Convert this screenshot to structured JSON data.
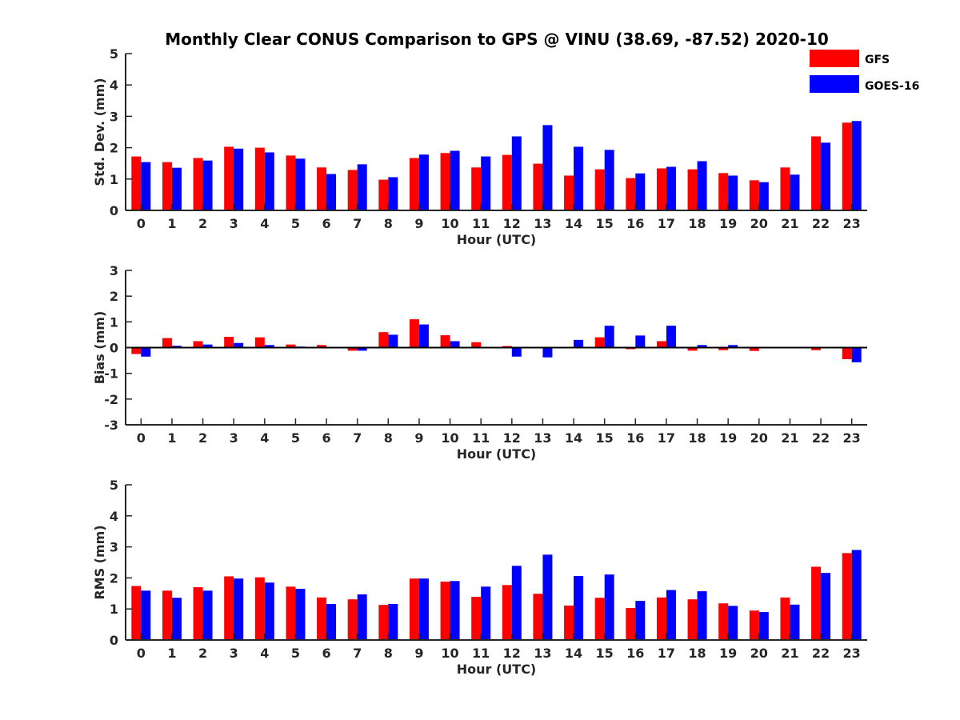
{
  "title": "Monthly Clear CONUS Comparison to GPS @ VINU (38.69, -87.52) 2020-10",
  "legend": [
    {
      "name": "GFS",
      "color": "#ff0000"
    },
    {
      "name": "GOES-16",
      "color": "#0000ff"
    }
  ],
  "chart_data": [
    {
      "type": "bar",
      "xlabel": "Hour (UTC)",
      "ylabel": "Std. Dev. (mm)",
      "ylim": [
        0,
        5
      ],
      "yticks": [
        0,
        1,
        2,
        3,
        4,
        5
      ],
      "categories": [
        "0",
        "1",
        "2",
        "3",
        "4",
        "5",
        "6",
        "7",
        "8",
        "9",
        "10",
        "11",
        "12",
        "13",
        "14",
        "15",
        "16",
        "17",
        "18",
        "19",
        "20",
        "21",
        "22",
        "23"
      ],
      "series": [
        {
          "name": "GFS",
          "color": "#ff0000",
          "values": [
            1.72,
            1.54,
            1.67,
            2.03,
            2.0,
            1.75,
            1.37,
            1.29,
            0.98,
            1.67,
            1.83,
            1.37,
            1.77,
            1.49,
            1.11,
            1.31,
            1.03,
            1.34,
            1.31,
            1.19,
            0.96,
            1.37,
            2.36,
            2.8
          ]
        },
        {
          "name": "GOES-16",
          "color": "#0000ff",
          "values": [
            1.54,
            1.36,
            1.59,
            1.97,
            1.85,
            1.65,
            1.16,
            1.47,
            1.06,
            1.78,
            1.9,
            1.72,
            2.36,
            2.72,
            2.03,
            1.93,
            1.18,
            1.39,
            1.57,
            1.11,
            0.9,
            1.14,
            2.16,
            2.85
          ]
        }
      ],
      "legend": "top-right"
    },
    {
      "type": "bar",
      "xlabel": "Hour (UTC)",
      "ylabel": "Bias (mm)",
      "ylim": [
        -3,
        3
      ],
      "yticks": [
        -3,
        -2,
        -1,
        0,
        1,
        2,
        3
      ],
      "categories": [
        "0",
        "1",
        "2",
        "3",
        "4",
        "5",
        "6",
        "7",
        "8",
        "9",
        "10",
        "11",
        "12",
        "13",
        "14",
        "15",
        "16",
        "17",
        "18",
        "19",
        "20",
        "21",
        "22",
        "23"
      ],
      "series": [
        {
          "name": "GFS",
          "color": "#ff0000",
          "values": [
            -0.25,
            0.37,
            0.25,
            0.42,
            0.4,
            0.12,
            0.1,
            -0.12,
            0.6,
            1.1,
            0.48,
            0.21,
            0.06,
            0.03,
            0.0,
            0.4,
            -0.06,
            0.25,
            -0.12,
            -0.1,
            -0.13,
            -0.03,
            -0.1,
            -0.45
          ]
        },
        {
          "name": "GOES-16",
          "color": "#0000ff",
          "values": [
            -0.35,
            0.07,
            0.12,
            0.18,
            0.1,
            0.04,
            -0.02,
            -0.12,
            0.5,
            0.9,
            0.25,
            0.0,
            -0.35,
            -0.38,
            0.3,
            0.85,
            0.47,
            0.85,
            0.1,
            0.1,
            0.0,
            0.0,
            0.0,
            -0.57
          ]
        }
      ]
    },
    {
      "type": "bar",
      "xlabel": "Hour (UTC)",
      "ylabel": "RMS (mm)",
      "ylim": [
        0,
        5
      ],
      "yticks": [
        0,
        1,
        2,
        3,
        4,
        5
      ],
      "categories": [
        "0",
        "1",
        "2",
        "3",
        "4",
        "5",
        "6",
        "7",
        "8",
        "9",
        "10",
        "11",
        "12",
        "13",
        "14",
        "15",
        "16",
        "17",
        "18",
        "19",
        "20",
        "21",
        "22",
        "23"
      ],
      "series": [
        {
          "name": "GFS",
          "color": "#ff0000",
          "values": [
            1.74,
            1.59,
            1.7,
            2.05,
            2.02,
            1.72,
            1.37,
            1.31,
            1.13,
            1.98,
            1.88,
            1.39,
            1.77,
            1.49,
            1.11,
            1.36,
            1.03,
            1.37,
            1.31,
            1.18,
            0.95,
            1.37,
            2.36,
            2.8
          ]
        },
        {
          "name": "GOES-16",
          "color": "#0000ff",
          "values": [
            1.59,
            1.36,
            1.59,
            1.98,
            1.85,
            1.65,
            1.16,
            1.47,
            1.16,
            1.98,
            1.9,
            1.72,
            2.39,
            2.75,
            2.06,
            2.11,
            1.26,
            1.61,
            1.57,
            1.1,
            0.9,
            1.14,
            2.16,
            2.9
          ]
        }
      ]
    }
  ]
}
